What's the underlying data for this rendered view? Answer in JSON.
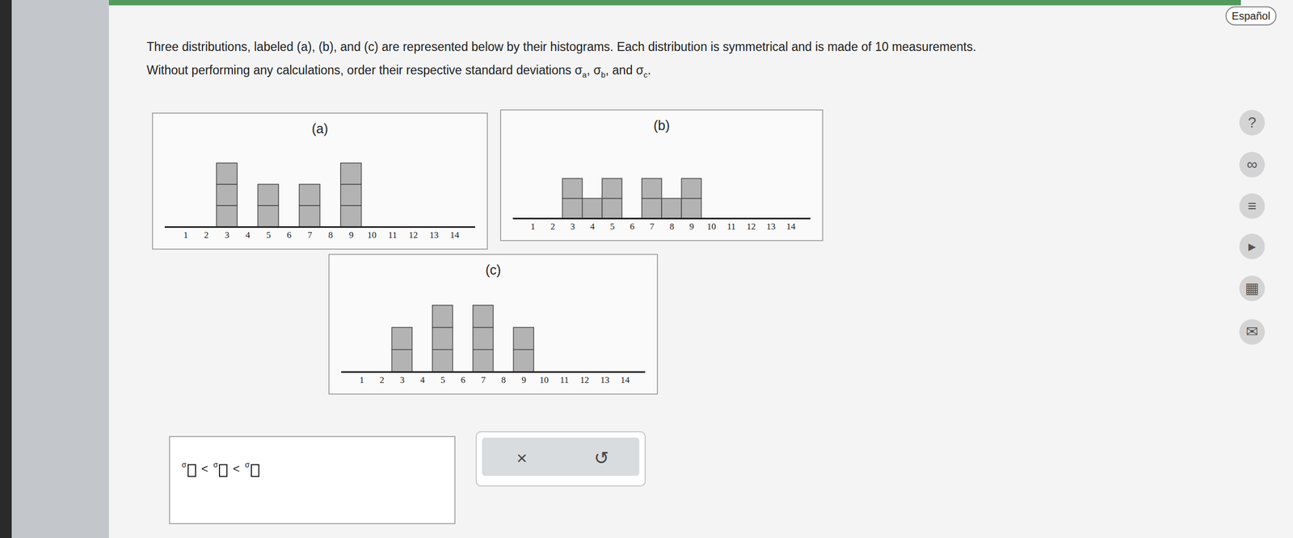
{
  "page": {
    "language_button": "Español",
    "question": [
      [
        "Three distributions, labeled (a), (b), and (c) are represented below by their histograms. Each distribution is symmetrical and is made of 10 measurements."
      ],
      [
        "Without performing any calculations, order their respective standard deviations ",
        {
          "symbol": "σ",
          "sub": "a"
        },
        ", ",
        {
          "symbol": "σ",
          "sub": "b"
        },
        ", and ",
        {
          "symbol": "σ",
          "sub": "c"
        },
        "."
      ]
    ],
    "answer_template": {
      "symbol": "σ",
      "relation": "<",
      "slots": 3
    },
    "buttons": [
      "×",
      "↺"
    ],
    "side_icons": [
      "?",
      "∞",
      "≡",
      "▸",
      "▦",
      "✉"
    ]
  },
  "chart_data": [
    {
      "type": "bar",
      "title": "(a)",
      "x": [
        3,
        5,
        7,
        9
      ],
      "values": [
        3,
        2,
        2,
        3
      ],
      "xlim": [
        0,
        15
      ],
      "xticks": [
        1,
        2,
        3,
        4,
        5,
        6,
        7,
        8,
        9,
        10,
        11,
        12,
        13,
        14
      ],
      "ylim": [
        0,
        4
      ],
      "tick_labels": "x",
      "color": "#b3b3b3"
    },
    {
      "type": "bar",
      "title": "(b)",
      "x": [
        3,
        4,
        5,
        7,
        8,
        9
      ],
      "values": [
        2,
        1,
        2,
        2,
        1,
        2
      ],
      "xlim": [
        0,
        15
      ],
      "xticks": [
        1,
        2,
        3,
        4,
        5,
        6,
        7,
        8,
        9,
        10,
        11,
        12,
        13,
        14
      ],
      "ylim": [
        0,
        4
      ],
      "tick_labels": "x",
      "color": "#b3b3b3"
    },
    {
      "type": "bar",
      "title": "(c)",
      "x": [
        3,
        5,
        7,
        9
      ],
      "values": [
        2,
        3,
        3,
        2
      ],
      "xlim": [
        0,
        15
      ],
      "xticks": [
        1,
        2,
        3,
        4,
        5,
        6,
        7,
        8,
        9,
        10,
        11,
        12,
        13,
        14
      ],
      "ylim": [
        0,
        4
      ],
      "tick_labels": "x",
      "color": "#b3b3b3"
    }
  ]
}
